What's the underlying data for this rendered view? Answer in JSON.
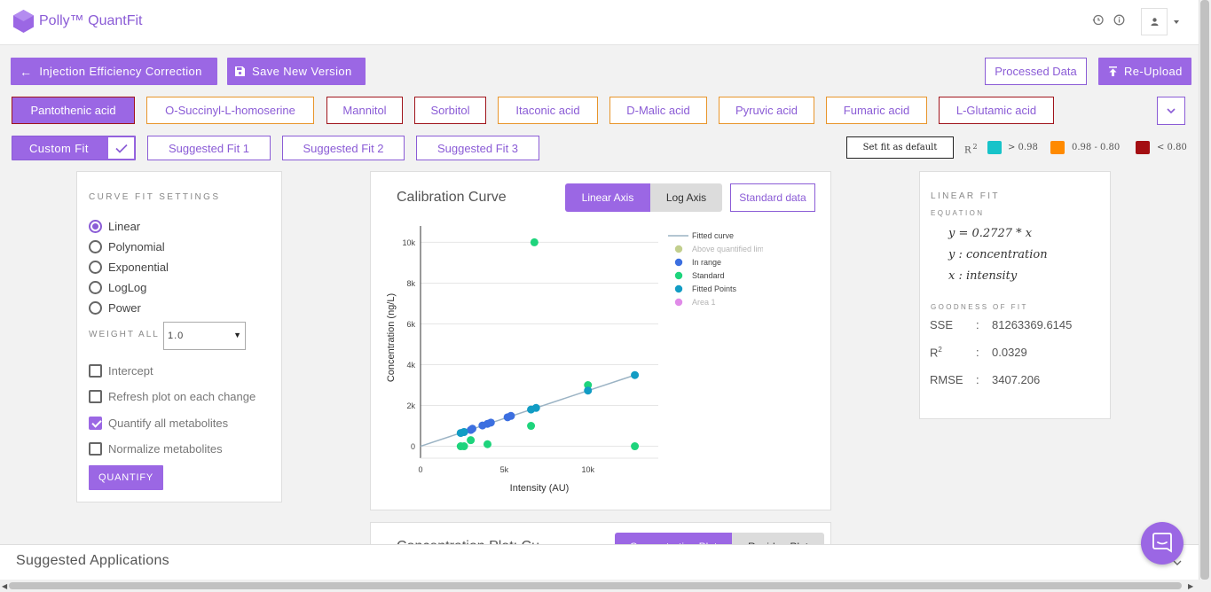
{
  "app": {
    "title": "Polly™ QuantFit"
  },
  "toolbar": {
    "injection_label": "Injection Efficiency Correction",
    "save_label": "Save New Version",
    "processed_label": "Processed Data",
    "reupload_label": "Re-Upload"
  },
  "metabolites": [
    {
      "label": "Pantothenic acid",
      "status": "red",
      "active": true
    },
    {
      "label": "O-Succinyl-L-homoserine",
      "status": "orange"
    },
    {
      "label": "Mannitol",
      "status": "red"
    },
    {
      "label": "Sorbitol",
      "status": "red"
    },
    {
      "label": "Itaconic acid",
      "status": "orange"
    },
    {
      "label": "D-Malic acid",
      "status": "orange"
    },
    {
      "label": "Pyruvic acid",
      "status": "orange"
    },
    {
      "label": "Fumaric acid",
      "status": "orange"
    },
    {
      "label": "L-Glutamic acid",
      "status": "red"
    }
  ],
  "fits": {
    "custom_label": "Custom Fit",
    "suggested": [
      "Suggested Fit 1",
      "Suggested Fit 2",
      "Suggested Fit 3"
    ],
    "default_label": "Set fit as default"
  },
  "r2_legend": {
    "label": "R",
    "sup": "2",
    "items": [
      {
        "color": "#17c3c9",
        "text": "> 0.98"
      },
      {
        "color": "#ff8a00",
        "text": "0.98 - 0.80"
      },
      {
        "color": "#a40e12",
        "text": "< 0.80"
      }
    ]
  },
  "settings": {
    "heading": "CURVE FIT SETTINGS",
    "fit_types": [
      "Linear",
      "Polynomial",
      "Exponential",
      "LogLog",
      "Power"
    ],
    "selected": "Linear",
    "weight_label": "WEIGHT ALL",
    "weight_value": "1.0",
    "options": [
      {
        "label": "Intercept",
        "checked": false
      },
      {
        "label": "Refresh plot on each change",
        "checked": false
      },
      {
        "label": "Quantify all metabolites",
        "checked": true
      },
      {
        "label": "Normalize metabolites",
        "checked": false
      }
    ],
    "quantify_label": "QUANTIFY"
  },
  "chart_panel": {
    "title": "Calibration Curve",
    "linear_label": "Linear Axis",
    "log_label": "Log Axis",
    "standard_label": "Standard data",
    "next_title": "Concentration Plot: Cu...",
    "next_tab1": "Concentration Plot",
    "next_tab2": "Residue Plot"
  },
  "chart_data": {
    "type": "scatter",
    "title": "",
    "xlabel": "Intensity (AU)",
    "ylabel": "Concentration (ng/L)",
    "xlim": [
      0,
      14200
    ],
    "ylim": [
      -150,
      10800
    ],
    "xticks": [
      0,
      5000,
      10000
    ],
    "xtick_labels": [
      "0",
      "5k",
      "10k"
    ],
    "yticks": [
      0,
      2000,
      4000,
      6000,
      8000,
      10000
    ],
    "ytick_labels": [
      "0",
      "2k",
      "4k",
      "6k",
      "8k",
      "10k"
    ],
    "grid": true,
    "legend": "right",
    "series": [
      {
        "name": "Fitted curve",
        "type": "line",
        "color": "#9bb3c4",
        "x": [
          0,
          12800
        ],
        "y": [
          0,
          3490
        ]
      },
      {
        "name": "Above quantified limit",
        "color": "#c2cf8e",
        "x": [],
        "y": []
      },
      {
        "name": "In range",
        "color": "#3c6fe0",
        "x": [
          2600,
          3000,
          3100,
          3700,
          4000,
          4200,
          5200,
          5400
        ],
        "y": [
          700,
          800,
          860,
          1020,
          1100,
          1160,
          1420,
          1490
        ]
      },
      {
        "name": "Standard",
        "color": "#1ed47c",
        "x": [
          6800,
          2400,
          2600,
          3000,
          4000,
          6600,
          10000,
          12800
        ],
        "y": [
          10000,
          0,
          0,
          300,
          100,
          1000,
          3000,
          0
        ]
      },
      {
        "name": "Fitted Points",
        "color": "#129cc4",
        "x": [
          2400,
          2600,
          6600,
          6900,
          10000,
          12800
        ],
        "y": [
          650,
          700,
          1800,
          1880,
          2730,
          3490
        ]
      },
      {
        "name": "Area 1",
        "color": "#e08be8",
        "x": [],
        "y": []
      }
    ]
  },
  "fit_info": {
    "heading": "LINEAR FIT",
    "eq_heading": "EQUATION",
    "equations": [
      "y = 0.2727 * x",
      "y : concentration",
      "x : intensity"
    ],
    "gof_heading": "GOODNESS OF FIT",
    "stats": [
      {
        "name": "SSE",
        "value": "81263369.6145"
      },
      {
        "name": "R",
        "sup": "2",
        "value": "0.0329"
      },
      {
        "name": "RMSE",
        "value": "3407.206"
      }
    ]
  },
  "footer": {
    "suggested_apps": "Suggested Applications"
  }
}
